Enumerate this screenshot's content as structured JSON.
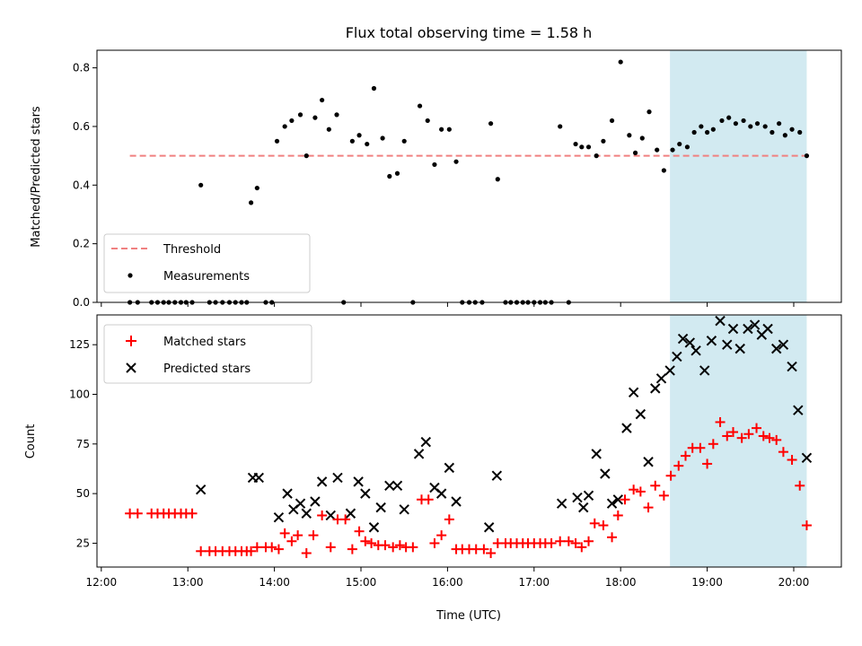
{
  "chart_data": {
    "title": "Flux total observing time = 1.58 h",
    "shaded_region_hours": [
      18.57,
      20.15
    ],
    "shade_color": "#add8e6",
    "x": {
      "label": "Time (UTC)",
      "range_hours": [
        11.95,
        20.55
      ],
      "ticks": [
        {
          "v": 12,
          "label": "12:00"
        },
        {
          "v": 13,
          "label": "13:00"
        },
        {
          "v": 14,
          "label": "14:00"
        },
        {
          "v": 15,
          "label": "15:00"
        },
        {
          "v": 16,
          "label": "16:00"
        },
        {
          "v": 17,
          "label": "17:00"
        },
        {
          "v": 18,
          "label": "18:00"
        },
        {
          "v": 19,
          "label": "19:00"
        },
        {
          "v": 20,
          "label": "20:00"
        }
      ]
    },
    "top": {
      "type": "scatter",
      "ylabel": "Matched/Predicted stars",
      "ylim": [
        0,
        0.86
      ],
      "yticks": [
        {
          "v": 0,
          "label": "0.0"
        },
        {
          "v": 0.2,
          "label": "0.2"
        },
        {
          "v": 0.4,
          "label": "0.4"
        },
        {
          "v": 0.6,
          "label": "0.6"
        },
        {
          "v": 0.8,
          "label": "0.8"
        }
      ],
      "threshold": {
        "name": "Threshold",
        "value": 0.5,
        "x_range": [
          12.33,
          20.15
        ],
        "color": "#f08080"
      },
      "legend": {
        "position": "lower-left",
        "threshold_label": "Threshold",
        "measurements_label": "Measurements"
      },
      "measurements": [
        [
          12.33,
          0
        ],
        [
          12.42,
          0
        ],
        [
          12.58,
          0
        ],
        [
          12.65,
          0
        ],
        [
          12.72,
          0
        ],
        [
          12.78,
          0
        ],
        [
          12.85,
          0
        ],
        [
          12.92,
          0
        ],
        [
          12.98,
          0
        ],
        [
          13.05,
          0
        ],
        [
          13.15,
          0.4
        ],
        [
          13.25,
          0
        ],
        [
          13.32,
          0
        ],
        [
          13.4,
          0
        ],
        [
          13.48,
          0
        ],
        [
          13.55,
          0
        ],
        [
          13.62,
          0
        ],
        [
          13.68,
          0
        ],
        [
          13.73,
          0.34
        ],
        [
          13.8,
          0.39
        ],
        [
          13.9,
          0
        ],
        [
          13.97,
          0
        ],
        [
          14.03,
          0.55
        ],
        [
          14.12,
          0.6
        ],
        [
          14.2,
          0.62
        ],
        [
          14.3,
          0.64
        ],
        [
          14.37,
          0.5
        ],
        [
          14.47,
          0.63
        ],
        [
          14.55,
          0.69
        ],
        [
          14.63,
          0.59
        ],
        [
          14.72,
          0.64
        ],
        [
          14.8,
          0
        ],
        [
          14.9,
          0.55
        ],
        [
          14.98,
          0.57
        ],
        [
          15.07,
          0.54
        ],
        [
          15.15,
          0.73
        ],
        [
          15.25,
          0.56
        ],
        [
          15.33,
          0.43
        ],
        [
          15.42,
          0.44
        ],
        [
          15.5,
          0.55
        ],
        [
          15.6,
          0
        ],
        [
          15.68,
          0.67
        ],
        [
          15.77,
          0.62
        ],
        [
          15.85,
          0.47
        ],
        [
          15.93,
          0.59
        ],
        [
          16.02,
          0.59
        ],
        [
          16.1,
          0.48
        ],
        [
          16.17,
          0
        ],
        [
          16.25,
          0
        ],
        [
          16.32,
          0
        ],
        [
          16.4,
          0
        ],
        [
          16.5,
          0.61
        ],
        [
          16.58,
          0.42
        ],
        [
          16.67,
          0
        ],
        [
          16.73,
          0
        ],
        [
          16.8,
          0
        ],
        [
          16.87,
          0
        ],
        [
          16.93,
          0
        ],
        [
          17.0,
          0
        ],
        [
          17.07,
          0
        ],
        [
          17.13,
          0
        ],
        [
          17.2,
          0
        ],
        [
          17.3,
          0.6
        ],
        [
          17.4,
          0
        ],
        [
          17.48,
          0.54
        ],
        [
          17.55,
          0.53
        ],
        [
          17.63,
          0.53
        ],
        [
          17.72,
          0.5
        ],
        [
          17.8,
          0.55
        ],
        [
          17.9,
          0.62
        ],
        [
          18.0,
          0.82
        ],
        [
          18.1,
          0.57
        ],
        [
          18.17,
          0.51
        ],
        [
          18.25,
          0.56
        ],
        [
          18.33,
          0.65
        ],
        [
          18.42,
          0.52
        ],
        [
          18.5,
          0.45
        ],
        [
          18.6,
          0.52
        ],
        [
          18.68,
          0.54
        ],
        [
          18.77,
          0.53
        ],
        [
          18.85,
          0.58
        ],
        [
          18.93,
          0.6
        ],
        [
          19.0,
          0.58
        ],
        [
          19.07,
          0.59
        ],
        [
          19.17,
          0.62
        ],
        [
          19.25,
          0.63
        ],
        [
          19.33,
          0.61
        ],
        [
          19.42,
          0.62
        ],
        [
          19.5,
          0.6
        ],
        [
          19.58,
          0.61
        ],
        [
          19.67,
          0.6
        ],
        [
          19.75,
          0.58
        ],
        [
          19.83,
          0.61
        ],
        [
          19.9,
          0.57
        ],
        [
          19.98,
          0.59
        ],
        [
          20.07,
          0.58
        ],
        [
          20.15,
          0.5
        ]
      ]
    },
    "bottom": {
      "type": "scatter",
      "ylabel": "Count",
      "ylim": [
        13,
        140
      ],
      "yticks": [
        {
          "v": 25,
          "label": "25"
        },
        {
          "v": 50,
          "label": "50"
        },
        {
          "v": 75,
          "label": "75"
        },
        {
          "v": 100,
          "label": "100"
        },
        {
          "v": 125,
          "label": "125"
        }
      ],
      "legend": {
        "position": "upper-left",
        "matched_label": "Matched stars",
        "predicted_label": "Predicted stars"
      },
      "matched": {
        "name": "Matched stars",
        "color": "#ff0000",
        "points": [
          [
            12.33,
            40
          ],
          [
            12.42,
            40
          ],
          [
            12.58,
            40
          ],
          [
            12.65,
            40
          ],
          [
            12.72,
            40
          ],
          [
            12.78,
            40
          ],
          [
            12.85,
            40
          ],
          [
            12.92,
            40
          ],
          [
            12.98,
            40
          ],
          [
            13.05,
            40
          ],
          [
            13.15,
            21
          ],
          [
            13.25,
            21
          ],
          [
            13.32,
            21
          ],
          [
            13.4,
            21
          ],
          [
            13.48,
            21
          ],
          [
            13.55,
            21
          ],
          [
            13.62,
            21
          ],
          [
            13.68,
            21
          ],
          [
            13.73,
            21
          ],
          [
            13.8,
            23
          ],
          [
            13.9,
            23
          ],
          [
            13.97,
            23
          ],
          [
            14.05,
            22
          ],
          [
            14.12,
            30
          ],
          [
            14.2,
            26
          ],
          [
            14.27,
            29
          ],
          [
            14.37,
            20
          ],
          [
            14.45,
            29
          ],
          [
            14.55,
            39
          ],
          [
            14.65,
            23
          ],
          [
            14.73,
            37
          ],
          [
            14.82,
            37
          ],
          [
            14.9,
            22
          ],
          [
            14.98,
            31
          ],
          [
            15.05,
            26
          ],
          [
            15.12,
            25
          ],
          [
            15.2,
            24
          ],
          [
            15.28,
            24
          ],
          [
            15.37,
            23
          ],
          [
            15.45,
            24
          ],
          [
            15.52,
            23
          ],
          [
            15.6,
            23
          ],
          [
            15.7,
            47
          ],
          [
            15.78,
            47
          ],
          [
            15.85,
            25
          ],
          [
            15.93,
            29
          ],
          [
            16.02,
            37
          ],
          [
            16.1,
            22
          ],
          [
            16.17,
            22
          ],
          [
            16.25,
            22
          ],
          [
            16.33,
            22
          ],
          [
            16.42,
            22
          ],
          [
            16.5,
            20
          ],
          [
            16.58,
            25
          ],
          [
            16.67,
            25
          ],
          [
            16.73,
            25
          ],
          [
            16.8,
            25
          ],
          [
            16.87,
            25
          ],
          [
            16.93,
            25
          ],
          [
            17.0,
            25
          ],
          [
            17.07,
            25
          ],
          [
            17.13,
            25
          ],
          [
            17.2,
            25
          ],
          [
            17.3,
            26
          ],
          [
            17.4,
            26
          ],
          [
            17.48,
            25
          ],
          [
            17.55,
            23
          ],
          [
            17.63,
            26
          ],
          [
            17.7,
            35
          ],
          [
            17.8,
            34
          ],
          [
            17.9,
            28
          ],
          [
            17.97,
            39
          ],
          [
            18.05,
            47
          ],
          [
            18.15,
            52
          ],
          [
            18.23,
            51
          ],
          [
            18.32,
            43
          ],
          [
            18.4,
            54
          ],
          [
            18.5,
            49
          ],
          [
            18.58,
            59
          ],
          [
            18.67,
            64
          ],
          [
            18.75,
            69
          ],
          [
            18.83,
            73
          ],
          [
            18.92,
            73
          ],
          [
            19.0,
            65
          ],
          [
            19.07,
            75
          ],
          [
            19.15,
            86
          ],
          [
            19.23,
            79
          ],
          [
            19.3,
            81
          ],
          [
            19.4,
            78
          ],
          [
            19.48,
            80
          ],
          [
            19.57,
            83
          ],
          [
            19.65,
            79
          ],
          [
            19.72,
            78
          ],
          [
            19.8,
            77
          ],
          [
            19.88,
            71
          ],
          [
            19.98,
            67
          ],
          [
            20.07,
            54
          ],
          [
            20.15,
            34
          ]
        ]
      },
      "predicted": {
        "name": "Predicted stars",
        "color": "#000000",
        "points": [
          [
            13.15,
            52
          ],
          [
            13.75,
            58
          ],
          [
            13.82,
            58
          ],
          [
            14.05,
            38
          ],
          [
            14.15,
            50
          ],
          [
            14.22,
            42
          ],
          [
            14.3,
            45
          ],
          [
            14.37,
            40
          ],
          [
            14.47,
            46
          ],
          [
            14.55,
            56
          ],
          [
            14.65,
            39
          ],
          [
            14.73,
            58
          ],
          [
            14.88,
            40
          ],
          [
            14.97,
            56
          ],
          [
            15.05,
            50
          ],
          [
            15.15,
            33
          ],
          [
            15.23,
            43
          ],
          [
            15.33,
            54
          ],
          [
            15.42,
            54
          ],
          [
            15.5,
            42
          ],
          [
            15.67,
            70
          ],
          [
            15.75,
            76
          ],
          [
            15.85,
            53
          ],
          [
            15.93,
            50
          ],
          [
            16.02,
            63
          ],
          [
            16.1,
            46
          ],
          [
            16.48,
            33
          ],
          [
            16.57,
            59
          ],
          [
            17.32,
            45
          ],
          [
            17.5,
            48
          ],
          [
            17.57,
            43
          ],
          [
            17.63,
            49
          ],
          [
            17.72,
            70
          ],
          [
            17.82,
            60
          ],
          [
            17.9,
            45
          ],
          [
            17.97,
            47
          ],
          [
            18.07,
            83
          ],
          [
            18.15,
            101
          ],
          [
            18.23,
            90
          ],
          [
            18.32,
            66
          ],
          [
            18.4,
            103
          ],
          [
            18.47,
            108
          ],
          [
            18.57,
            112
          ],
          [
            18.65,
            119
          ],
          [
            18.72,
            128
          ],
          [
            18.8,
            126
          ],
          [
            18.87,
            122
          ],
          [
            18.97,
            112
          ],
          [
            19.05,
            127
          ],
          [
            19.15,
            137
          ],
          [
            19.23,
            125
          ],
          [
            19.3,
            133
          ],
          [
            19.38,
            123
          ],
          [
            19.47,
            133
          ],
          [
            19.55,
            135
          ],
          [
            19.63,
            130
          ],
          [
            19.7,
            133
          ],
          [
            19.8,
            123
          ],
          [
            19.88,
            125
          ],
          [
            19.98,
            114
          ],
          [
            20.05,
            92
          ],
          [
            20.15,
            68
          ]
        ]
      }
    }
  }
}
